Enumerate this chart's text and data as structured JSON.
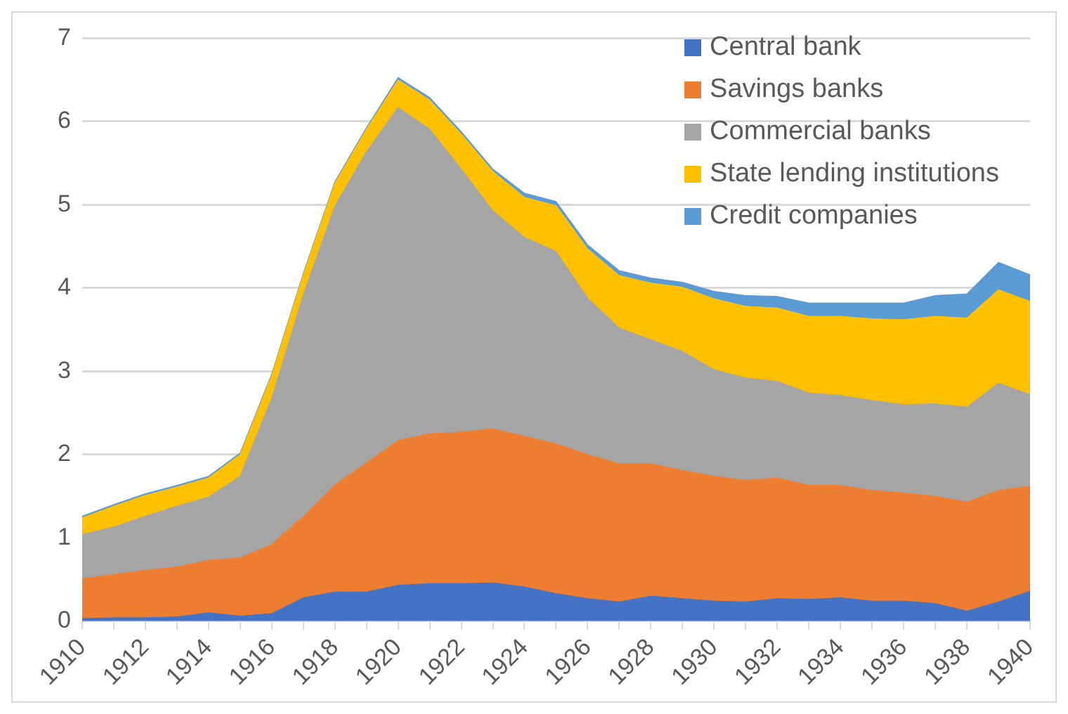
{
  "chart_data": {
    "type": "area",
    "stacked": true,
    "x": [
      1910,
      1911,
      1912,
      1913,
      1914,
      1915,
      1916,
      1917,
      1918,
      1919,
      1920,
      1921,
      1922,
      1923,
      1924,
      1925,
      1926,
      1927,
      1928,
      1929,
      1930,
      1931,
      1932,
      1933,
      1934,
      1935,
      1936,
      1937,
      1938,
      1939,
      1940
    ],
    "xlim": [
      1910,
      1940
    ],
    "xticks": [
      1910,
      {
        "value": 1911,
        "label": null
      },
      1912,
      {
        "value": 1913,
        "label": null
      },
      1914,
      {
        "value": 1915,
        "label": null
      },
      1916,
      {
        "value": 1917,
        "label": null
      },
      1918,
      {
        "value": 1919,
        "label": null
      },
      1920,
      {
        "value": 1921,
        "label": null
      },
      1922,
      {
        "value": 1923,
        "label": null
      },
      1924,
      {
        "value": 1925,
        "label": null
      },
      1926,
      {
        "value": 1927,
        "label": null
      },
      1928,
      {
        "value": 1929,
        "label": null
      },
      1930,
      {
        "value": 1931,
        "label": null
      },
      1932,
      {
        "value": 1933,
        "label": null
      },
      1934,
      {
        "value": 1935,
        "label": null
      },
      1936,
      {
        "value": 1937,
        "label": null
      },
      1938,
      {
        "value": 1939,
        "label": null
      },
      1940
    ],
    "ylim": [
      0,
      7
    ],
    "yticks": [
      0,
      1,
      2,
      3,
      4,
      5,
      6,
      7
    ],
    "grid": "y",
    "legend": "top right",
    "series": [
      {
        "name": "Central bank",
        "color": "#4472c4",
        "values": [
          0.03,
          0.04,
          0.04,
          0.05,
          0.1,
          0.06,
          0.09,
          0.28,
          0.35,
          0.35,
          0.43,
          0.45,
          0.45,
          0.46,
          0.41,
          0.33,
          0.27,
          0.23,
          0.3,
          0.27,
          0.24,
          0.23,
          0.27,
          0.26,
          0.28,
          0.24,
          0.24,
          0.21,
          0.12,
          0.23,
          0.36
        ]
      },
      {
        "name": "Savings banks",
        "color": "#ed7d31",
        "values": [
          0.48,
          0.52,
          0.57,
          0.6,
          0.63,
          0.7,
          0.83,
          0.98,
          1.29,
          1.55,
          1.74,
          1.8,
          1.82,
          1.85,
          1.81,
          1.8,
          1.73,
          1.66,
          1.59,
          1.54,
          1.5,
          1.46,
          1.45,
          1.37,
          1.35,
          1.33,
          1.3,
          1.29,
          1.31,
          1.34,
          1.26
        ]
      },
      {
        "name": "Commercial banks",
        "color": "#a5a5a5",
        "values": [
          0.53,
          0.57,
          0.65,
          0.73,
          0.76,
          0.98,
          1.76,
          2.66,
          3.35,
          3.74,
          4.0,
          3.66,
          3.16,
          2.62,
          2.39,
          2.31,
          1.88,
          1.63,
          1.49,
          1.43,
          1.28,
          1.23,
          1.16,
          1.11,
          1.08,
          1.08,
          1.06,
          1.11,
          1.14,
          1.29,
          1.1
        ]
      },
      {
        "name": "State lending institutions",
        "color": "#ffc000",
        "values": [
          0.2,
          0.25,
          0.25,
          0.23,
          0.23,
          0.26,
          0.27,
          0.24,
          0.27,
          0.27,
          0.33,
          0.35,
          0.42,
          0.47,
          0.48,
          0.55,
          0.59,
          0.63,
          0.68,
          0.77,
          0.85,
          0.86,
          0.88,
          0.92,
          0.95,
          0.98,
          1.02,
          1.05,
          1.07,
          1.12,
          1.12
        ]
      },
      {
        "name": "Credit companies",
        "color": "#5b9bd5",
        "values": [
          0.02,
          0.02,
          0.02,
          0.02,
          0.02,
          0.02,
          0.02,
          0.02,
          0.02,
          0.02,
          0.03,
          0.03,
          0.03,
          0.03,
          0.05,
          0.05,
          0.05,
          0.06,
          0.06,
          0.06,
          0.09,
          0.13,
          0.14,
          0.16,
          0.16,
          0.19,
          0.2,
          0.25,
          0.29,
          0.33,
          0.32
        ]
      }
    ]
  }
}
